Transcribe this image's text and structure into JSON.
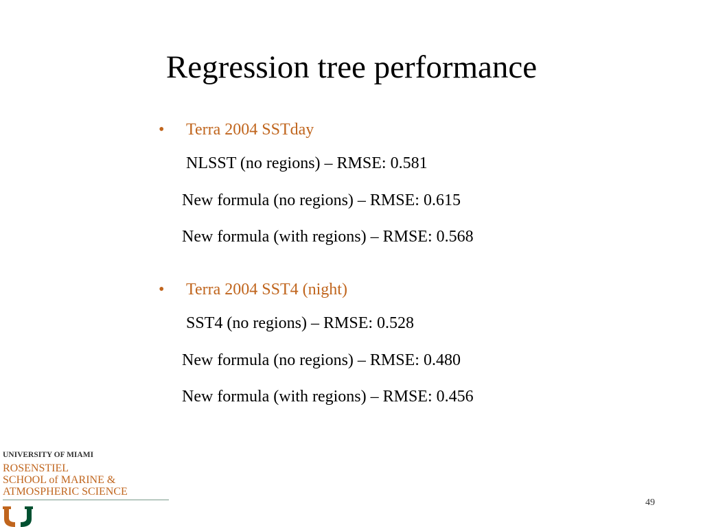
{
  "slide": {
    "title": "Regression tree performance",
    "page_number": "49"
  },
  "sections": [
    {
      "bullet": "•",
      "heading": "Terra 2004 SSTday",
      "lines": [
        "NLSST (no regions) – RMSE: 0.581",
        "New formula (no regions) – RMSE: 0.615",
        "New formula (with regions) – RMSE: 0.568"
      ]
    },
    {
      "bullet": "•",
      "heading": "Terra 2004 SST4 (night)",
      "lines": [
        "SST4 (no regions) – RMSE: 0.528",
        "New formula (no regions) – RMSE: 0.480",
        "New formula (with regions) – RMSE: 0.456"
      ]
    }
  ],
  "logo": {
    "university": "UNIVERSITY OF MIAMI",
    "school_line1": "ROSENSTIEL",
    "school_line2": "SCHOOL of MARINE &",
    "school_line3": "ATMOSPHERIC SCIENCE",
    "colors": {
      "orange": "#c0651d",
      "green": "#005030"
    }
  },
  "colors": {
    "accent": "#c0651d",
    "text": "#000000",
    "background": "#ffffff"
  }
}
